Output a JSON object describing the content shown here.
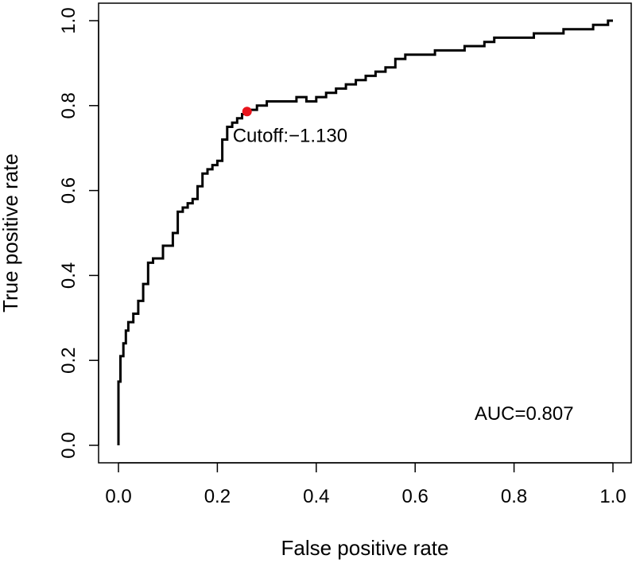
{
  "chart_data": {
    "type": "line",
    "title": "",
    "xlabel": "False positive rate",
    "ylabel": "True positive rate",
    "xlim": [
      0,
      1
    ],
    "ylim": [
      0,
      1
    ],
    "xticks": [
      0.0,
      0.2,
      0.4,
      0.6,
      0.8,
      1.0
    ],
    "yticks": [
      0.0,
      0.2,
      0.4,
      0.6,
      0.8,
      1.0
    ],
    "xtick_labels": [
      "0.0",
      "0.2",
      "0.4",
      "0.6",
      "0.8",
      "1.0"
    ],
    "ytick_labels": [
      "0.0",
      "0.2",
      "0.4",
      "0.6",
      "0.8",
      "1.0"
    ],
    "grid": false,
    "series": [
      {
        "color": "#000000",
        "x": [
          0.0,
          0.0,
          0.002,
          0.004,
          0.006,
          0.01,
          0.015,
          0.02,
          0.03,
          0.04,
          0.05,
          0.06,
          0.07,
          0.08,
          0.09,
          0.1,
          0.11,
          0.12,
          0.13,
          0.14,
          0.15,
          0.16,
          0.17,
          0.18,
          0.19,
          0.2,
          0.21,
          0.22,
          0.23,
          0.24,
          0.25,
          0.26,
          0.28,
          0.3,
          0.32,
          0.34,
          0.36,
          0.38,
          0.4,
          0.42,
          0.44,
          0.46,
          0.48,
          0.5,
          0.52,
          0.54,
          0.56,
          0.58,
          0.6,
          0.62,
          0.64,
          0.66,
          0.68,
          0.7,
          0.72,
          0.74,
          0.76,
          0.78,
          0.8,
          0.82,
          0.84,
          0.86,
          0.88,
          0.9,
          0.92,
          0.94,
          0.96,
          0.98,
          0.99,
          1.0
        ],
        "y": [
          0.0,
          0.15,
          0.15,
          0.21,
          0.21,
          0.24,
          0.27,
          0.29,
          0.31,
          0.34,
          0.38,
          0.43,
          0.44,
          0.44,
          0.47,
          0.47,
          0.5,
          0.55,
          0.56,
          0.57,
          0.58,
          0.61,
          0.64,
          0.65,
          0.66,
          0.67,
          0.72,
          0.75,
          0.76,
          0.77,
          0.78,
          0.79,
          0.8,
          0.81,
          0.81,
          0.81,
          0.82,
          0.81,
          0.82,
          0.83,
          0.84,
          0.85,
          0.86,
          0.87,
          0.88,
          0.89,
          0.91,
          0.92,
          0.92,
          0.92,
          0.93,
          0.93,
          0.93,
          0.94,
          0.94,
          0.95,
          0.96,
          0.96,
          0.96,
          0.96,
          0.97,
          0.97,
          0.97,
          0.98,
          0.98,
          0.98,
          0.99,
          0.99,
          1.0,
          1.0
        ]
      }
    ],
    "points": [
      {
        "x": 0.26,
        "y": 0.786,
        "color": "#e8141c",
        "label": "Cutoff:−1.130"
      }
    ],
    "annotations": [
      {
        "text": "AUC=0.807",
        "x": 0.72,
        "y": 0.06
      }
    ]
  }
}
